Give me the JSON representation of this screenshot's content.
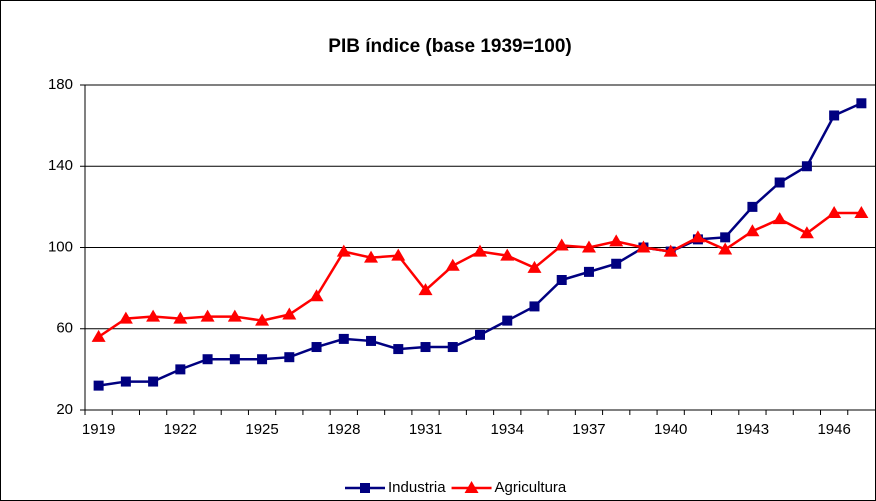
{
  "chart_data": {
    "type": "line",
    "title": "PIB índice (base 1939=100)",
    "x": [
      1919,
      1920,
      1921,
      1922,
      1923,
      1924,
      1925,
      1926,
      1927,
      1928,
      1929,
      1930,
      1931,
      1932,
      1933,
      1934,
      1935,
      1936,
      1937,
      1938,
      1939,
      1940,
      1941,
      1942,
      1943,
      1944,
      1945,
      1946,
      1947
    ],
    "series": [
      {
        "name": "Industria",
        "color": "#000080",
        "marker": "square",
        "values": [
          32,
          34,
          34,
          40,
          45,
          45,
          45,
          46,
          51,
          55,
          54,
          50,
          51,
          51,
          57,
          64,
          71,
          84,
          88,
          92,
          100,
          98,
          104,
          105,
          120,
          132,
          140,
          165,
          171
        ]
      },
      {
        "name": "Agricultura",
        "color": "#ff0000",
        "marker": "triangle",
        "values": [
          56,
          65,
          66,
          65,
          66,
          66,
          64,
          67,
          76,
          98,
          95,
          96,
          79,
          91,
          98,
          96,
          90,
          101,
          100,
          103,
          100,
          98,
          105,
          99,
          108,
          114,
          107,
          117,
          117
        ]
      }
    ],
    "xlim": [
      1918.5,
      1947.5
    ],
    "xticks": [
      1919,
      1922,
      1925,
      1928,
      1931,
      1934,
      1937,
      1940,
      1943,
      1946
    ],
    "ylim": [
      20,
      180
    ],
    "yticks": [
      20,
      60,
      100,
      140,
      180
    ],
    "grid": true,
    "legend": "bottom"
  }
}
